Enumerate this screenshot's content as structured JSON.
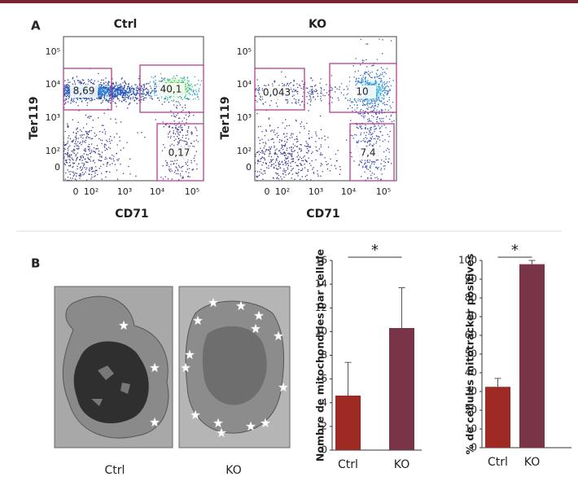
{
  "panel_labels": [
    "A",
    "B"
  ],
  "flow": [
    {
      "title": "Ctrl",
      "xlabel": "CD71",
      "ylabel": "Ter119",
      "xticks": [
        "0",
        "10²",
        "10³",
        "10⁴",
        "10⁵"
      ],
      "yticks": [
        "10⁵",
        "10⁴",
        "10³",
        "10²",
        "0"
      ],
      "gates": [
        "8,69",
        "40,1",
        "0,17"
      ]
    },
    {
      "title": "KO",
      "xlabel": "CD71",
      "ylabel": "Ter119",
      "xticks": [
        "0",
        "10²",
        "10³",
        "10⁴",
        "10⁵"
      ],
      "yticks": [
        "10⁵",
        "10⁴",
        "10³",
        "10²",
        "0"
      ],
      "gates": [
        "0,043",
        "10",
        "7,4"
      ]
    }
  ],
  "em_images": [
    {
      "label": "Ctrl"
    },
    {
      "label": "KO"
    }
  ],
  "chart_data": [
    {
      "type": "bar",
      "ylabel": "Nombre de mitochondries par cellule",
      "categories": [
        "Ctrl",
        "KO"
      ],
      "values": [
        4.6,
        10.3
      ],
      "errors": [
        2.8,
        3.4
      ],
      "colors": [
        "#9e2a24",
        "#7a3447"
      ],
      "ylim": [
        0,
        16
      ],
      "yticks": [
        0,
        2,
        4,
        6,
        8,
        10,
        12,
        14,
        16
      ],
      "significance": "*"
    },
    {
      "type": "bar",
      "ylabel": "% de cellules mitotracker positives",
      "categories": [
        "Ctrl",
        "KO"
      ],
      "values": [
        32.5,
        98
      ],
      "errors": [
        4.5,
        2
      ],
      "colors": [
        "#9e2a24",
        "#7a3447"
      ],
      "ylim": [
        0,
        100
      ],
      "yticks": [
        0,
        10,
        20,
        30,
        40,
        50,
        60,
        70,
        80,
        90,
        100
      ],
      "significance": "*"
    }
  ]
}
